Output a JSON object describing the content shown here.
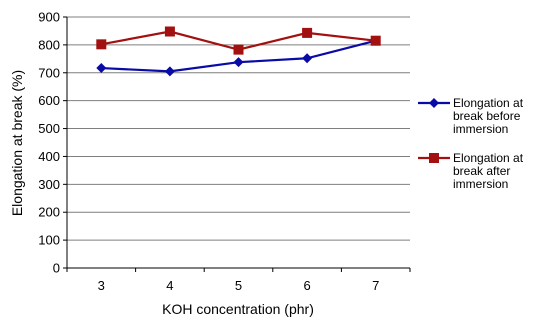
{
  "chart_data": {
    "type": "line",
    "title": "",
    "xlabel": "KOH concentration (phr)",
    "ylabel": "Elongation at break (%)",
    "categories": [
      "3",
      "4",
      "5",
      "6",
      "7"
    ],
    "ylim": [
      0,
      900
    ],
    "yticks": [
      0,
      100,
      200,
      300,
      400,
      500,
      600,
      700,
      800,
      900
    ],
    "grid": true,
    "legend_position": "right",
    "series": [
      {
        "name": "Elongation at break before immersion",
        "legend_lines": [
          "Elongation at",
          "break before",
          "immersion"
        ],
        "values": [
          717,
          705,
          738,
          752,
          815
        ],
        "color": "#0a0aa6",
        "marker": "diamond"
      },
      {
        "name": "Elongation at break after immersion",
        "legend_lines": [
          "Elongation at",
          "break after",
          "immersion"
        ],
        "values": [
          802,
          848,
          783,
          843,
          815
        ],
        "color": "#a31010",
        "marker": "square"
      }
    ]
  }
}
